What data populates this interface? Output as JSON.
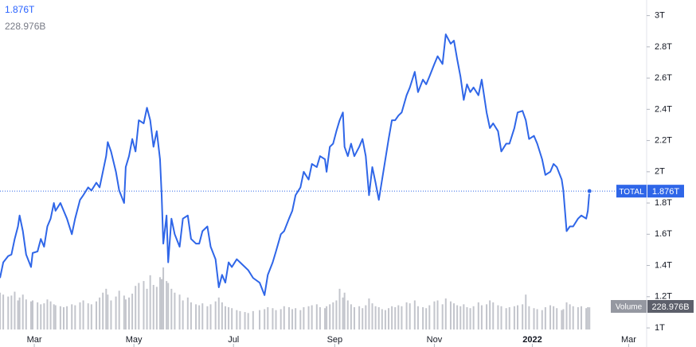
{
  "chart_data": {
    "type": "line",
    "x": [
      0,
      2,
      5,
      7,
      9,
      11,
      12,
      14,
      16,
      19,
      20,
      23,
      25,
      27,
      29,
      31,
      33,
      34,
      37,
      39,
      41,
      44,
      46,
      49,
      51,
      54,
      56,
      59,
      61,
      63,
      65,
      66,
      68,
      71,
      73,
      76,
      77,
      79,
      81,
      83,
      85,
      88,
      90,
      92,
      94,
      96,
      98,
      99,
      100,
      102,
      103,
      105,
      107,
      110,
      112,
      115,
      117,
      120,
      122,
      124,
      127,
      129,
      132,
      134,
      136,
      138,
      140,
      142,
      145,
      147,
      150,
      152,
      155,
      159,
      162,
      164,
      167,
      169,
      172,
      174,
      177,
      179,
      181,
      184,
      186,
      189,
      191,
      194,
      196,
      199,
      200,
      202,
      204,
      206,
      208,
      210,
      211,
      213,
      215,
      217,
      220,
      222,
      224,
      226,
      228,
      230,
      232,
      234,
      236,
      238,
      240,
      242,
      244,
      246,
      249,
      251,
      254,
      256,
      259,
      261,
      263,
      266,
      268,
      271,
      273,
      276,
      278,
      280,
      282,
      284,
      286,
      288,
      290,
      293,
      295,
      298,
      300,
      302,
      305,
      307,
      310,
      312,
      315,
      317,
      320,
      322,
      324,
      327,
      329,
      332,
      334,
      337,
      339,
      341,
      344,
      345,
      347,
      349,
      351,
      354,
      356,
      359,
      360,
      361
    ],
    "series": [
      {
        "name": "TOTAL",
        "color": "#2f66e8",
        "last_label": "1.876T",
        "values": [
          1.32,
          1.42,
          1.46,
          1.47,
          1.57,
          1.65,
          1.72,
          1.62,
          1.47,
          1.39,
          1.48,
          1.49,
          1.57,
          1.52,
          1.65,
          1.7,
          1.8,
          1.75,
          1.8,
          1.75,
          1.7,
          1.6,
          1.7,
          1.82,
          1.85,
          1.9,
          1.88,
          1.93,
          1.9,
          2.0,
          2.1,
          2.19,
          2.13,
          2.0,
          1.88,
          1.8,
          2.03,
          2.1,
          2.21,
          2.13,
          2.33,
          2.31,
          2.41,
          2.33,
          2.16,
          2.26,
          2.08,
          1.85,
          1.54,
          1.72,
          1.42,
          1.7,
          1.6,
          1.52,
          1.7,
          1.72,
          1.57,
          1.54,
          1.54,
          1.62,
          1.65,
          1.52,
          1.44,
          1.26,
          1.34,
          1.29,
          1.42,
          1.39,
          1.44,
          1.42,
          1.39,
          1.37,
          1.32,
          1.29,
          1.21,
          1.34,
          1.42,
          1.49,
          1.6,
          1.62,
          1.7,
          1.75,
          1.85,
          1.9,
          2.0,
          1.95,
          2.05,
          2.03,
          2.1,
          2.08,
          2.0,
          2.16,
          2.18,
          2.26,
          2.33,
          2.38,
          2.16,
          2.1,
          2.18,
          2.1,
          2.16,
          2.21,
          2.1,
          1.85,
          2.03,
          1.93,
          1.82,
          1.95,
          2.08,
          2.21,
          2.33,
          2.33,
          2.36,
          2.38,
          2.49,
          2.54,
          2.64,
          2.51,
          2.59,
          2.56,
          2.61,
          2.69,
          2.74,
          2.69,
          2.88,
          2.82,
          2.84,
          2.72,
          2.61,
          2.46,
          2.56,
          2.51,
          2.54,
          2.49,
          2.59,
          2.38,
          2.28,
          2.31,
          2.26,
          2.13,
          2.18,
          2.18,
          2.28,
          2.38,
          2.39,
          2.33,
          2.21,
          2.23,
          2.18,
          2.08,
          1.98,
          2.0,
          2.05,
          2.03,
          1.95,
          1.88,
          1.62,
          1.65,
          1.65,
          1.7,
          1.72,
          1.7,
          1.75,
          1.876
        ]
      },
      {
        "name": "Volume",
        "color": "#c3c5cc",
        "axis": "y2",
        "last_label": "228.976B",
        "values": [
          380,
          360,
          340,
          350,
          390,
          300,
          330,
          360,
          310,
          290,
          300,
          280,
          260,
          270,
          310,
          290,
          260,
          250,
          240,
          230,
          240,
          260,
          250,
          280,
          300,
          270,
          260,
          290,
          330,
          380,
          420,
          360,
          300,
          340,
          400,
          350,
          310,
          330,
          370,
          450,
          480,
          500,
          420,
          560,
          460,
          440,
          540,
          520,
          640,
          500,
          480,
          420,
          380,
          360,
          300,
          330,
          280,
          260,
          250,
          270,
          240,
          260,
          290,
          330,
          280,
          240,
          230,
          220,
          200,
          190,
          180,
          170,
          190,
          200,
          210,
          230,
          220,
          200,
          210,
          240,
          230,
          210,
          220,
          200,
          230,
          240,
          250,
          260,
          230,
          220,
          240,
          260,
          280,
          300,
          420,
          330,
          380,
          300,
          260,
          230,
          240,
          220,
          250,
          320,
          270,
          240,
          230,
          210,
          200,
          220,
          240,
          230,
          250,
          240,
          280,
          270,
          300,
          240,
          230,
          220,
          250,
          290,
          300,
          260,
          320,
          290,
          270,
          250,
          240,
          260,
          230,
          220,
          240,
          280,
          250,
          260,
          300,
          280,
          250,
          240,
          220,
          230,
          240,
          250,
          260,
          360,
          240,
          220,
          210,
          200,
          230,
          250,
          240,
          220,
          200,
          210,
          280,
          260,
          240,
          230,
          240,
          220,
          230,
          228.976
        ]
      }
    ],
    "xlim": [
      0,
      396
    ],
    "xticks": [
      {
        "value": 21,
        "label": "Mar"
      },
      {
        "value": 82,
        "label": "May"
      },
      {
        "value": 143,
        "label": "Jul"
      },
      {
        "value": 205,
        "label": "Sep"
      },
      {
        "value": 266,
        "label": "Nov"
      },
      {
        "value": 326,
        "label": "2022"
      },
      {
        "value": 385,
        "label": "Mar"
      }
    ],
    "ylim": [
      0.99,
      3.1
    ],
    "yticks": [
      {
        "value": 1,
        "label": "1T"
      },
      {
        "value": 1.2,
        "label": "1.2T"
      },
      {
        "value": 1.4,
        "label": "1.4T"
      },
      {
        "value": 1.6,
        "label": "1.6T"
      },
      {
        "value": 1.8,
        "label": "1.8T"
      },
      {
        "value": 2,
        "label": "2T"
      },
      {
        "value": 2.2,
        "label": "2.2T"
      },
      {
        "value": 2.4,
        "label": "2.4T"
      },
      {
        "value": 2.6,
        "label": "2.6T"
      },
      {
        "value": 2.8,
        "label": "2.8T"
      },
      {
        "value": 3,
        "label": "3T"
      }
    ],
    "y2lim": [
      0,
      3400
    ],
    "grid": false
  }
}
